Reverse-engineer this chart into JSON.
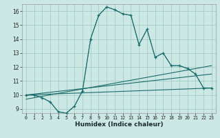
{
  "xlabel": "Humidex (Indice chaleur)",
  "bg_color": "#cce8e4",
  "grid_color": "#aacfcb",
  "line_color": "#1a6b6b",
  "xlim": [
    -0.5,
    23.5
  ],
  "ylim": [
    8.7,
    16.5
  ],
  "xticks": [
    0,
    1,
    2,
    3,
    4,
    5,
    6,
    7,
    8,
    9,
    10,
    11,
    12,
    13,
    14,
    15,
    16,
    17,
    18,
    19,
    20,
    21,
    22,
    23
  ],
  "yticks": [
    9,
    10,
    11,
    12,
    13,
    14,
    15,
    16
  ],
  "main_x": [
    0,
    1,
    2,
    3,
    4,
    5,
    6,
    7,
    8,
    9,
    10,
    11,
    12,
    13,
    14,
    15,
    16,
    17,
    18,
    19,
    20,
    21,
    22,
    23
  ],
  "main_y": [
    10.0,
    10.0,
    9.8,
    9.5,
    8.8,
    8.7,
    9.2,
    10.3,
    14.0,
    15.7,
    16.3,
    16.1,
    15.8,
    15.7,
    13.6,
    14.7,
    12.7,
    13.0,
    12.1,
    12.1,
    11.9,
    11.5,
    10.5,
    10.5
  ],
  "dotted_x": [
    0,
    1,
    2,
    3,
    4,
    5,
    6,
    7,
    8,
    9,
    10,
    11,
    12,
    13,
    14,
    15,
    16,
    17,
    18,
    19,
    20,
    21,
    22,
    23
  ],
  "dotted_y": [
    10.0,
    10.0,
    9.8,
    9.5,
    8.8,
    8.7,
    9.2,
    10.3,
    14.0,
    15.7,
    16.3,
    16.1,
    15.8,
    15.7,
    13.6,
    14.7,
    12.7,
    13.0,
    12.1,
    12.1,
    11.9,
    11.5,
    10.5,
    10.5
  ],
  "line1_x": [
    0,
    23
  ],
  "line1_y": [
    10.0,
    10.5
  ],
  "line2_x": [
    0,
    23
  ],
  "line2_y": [
    10.0,
    11.5
  ],
  "line3_x": [
    0,
    23
  ],
  "line3_y": [
    9.7,
    12.1
  ]
}
